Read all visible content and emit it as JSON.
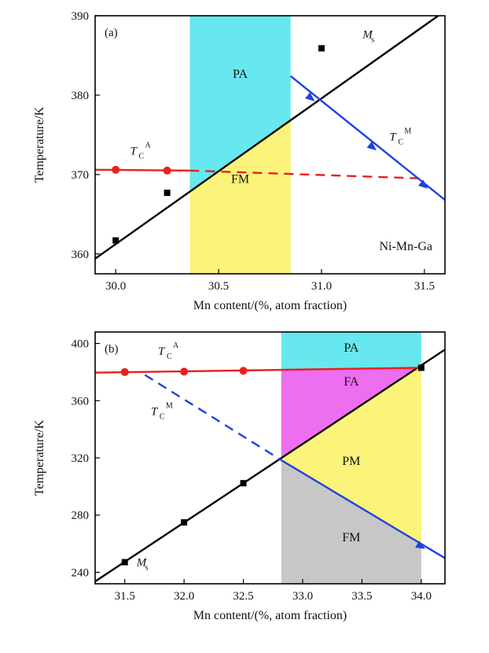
{
  "chart_data": [
    {
      "type": "line",
      "panel_label": "(a)",
      "xlabel": "Mn content/(%, atom fraction)",
      "ylabel": "Temperature/K",
      "xlim": [
        29.9,
        31.6
      ],
      "ylim": [
        357.5,
        390
      ],
      "xticks": [
        30.0,
        30.5,
        31.0,
        31.5
      ],
      "xtick_labels": [
        "30.0",
        "30.5",
        "31.0",
        "31.5"
      ],
      "yticks": [
        360,
        370,
        380,
        390
      ],
      "ytick_labels": [
        "360",
        "370",
        "380",
        "390"
      ],
      "annotation": "Ni-Mn-Ga",
      "regions": [
        {
          "label": "PA",
          "color": "#66e8ee",
          "shape": "above-Ms",
          "x": [
            30.36,
            30.85
          ]
        },
        {
          "label": "FM",
          "color": "#fbf37a",
          "shape": "below-Ms",
          "x": [
            30.36,
            30.85
          ]
        }
      ],
      "series": [
        {
          "name": "Ms",
          "name_main": "M",
          "name_sub": "s",
          "color": "#000000",
          "marker": "square",
          "style": "solid",
          "line": [
            [
              29.9,
              359.4
            ],
            [
              31.6,
              390.6
            ]
          ],
          "points": [
            [
              30.0,
              361.7
            ],
            [
              30.25,
              367.7
            ],
            [
              31.0,
              385.9
            ]
          ],
          "label_pos": [
            31.2,
            387.2
          ]
        },
        {
          "name": "TCA",
          "name_main": "T",
          "name_sub": "C",
          "name_sup": "A",
          "color": "#e82020",
          "marker": "circle",
          "style": "solid",
          "line": [
            [
              29.9,
              370.6
            ],
            [
              30.36,
              370.5
            ]
          ],
          "points": [
            [
              30.0,
              370.6
            ],
            [
              30.25,
              370.5
            ]
          ],
          "label_pos": [
            30.07,
            372.5
          ]
        },
        {
          "name": "TCA-extrapolated",
          "color": "#e82020",
          "style": "dashed",
          "line": [
            [
              30.36,
              370.5
            ],
            [
              31.5,
              369.5
            ]
          ]
        },
        {
          "name": "TCM",
          "name_main": "T",
          "name_sub": "C",
          "name_sup": "M",
          "color": "#1e40e6",
          "marker": "arrow",
          "style": "solid",
          "line": [
            [
              30.85,
              382.4
            ],
            [
              31.6,
              366.8
            ]
          ],
          "points": [
            [
              30.95,
              379.6
            ],
            [
              31.25,
              373.4
            ],
            [
              31.5,
              368.6
            ]
          ],
          "label_pos": [
            31.33,
            374.3
          ]
        }
      ]
    },
    {
      "type": "line",
      "panel_label": "(b)",
      "xlabel": "Mn content/(%, atom fraction)",
      "ylabel": "Temperature/K",
      "xlim": [
        31.25,
        34.2
      ],
      "ylim": [
        232,
        408
      ],
      "xticks": [
        31.5,
        32.0,
        32.5,
        33.0,
        33.5,
        34.0
      ],
      "xtick_labels": [
        "31.5",
        "32.0",
        "32.5",
        "33.0",
        "33.5",
        "34.0"
      ],
      "yticks": [
        240,
        280,
        320,
        360,
        400
      ],
      "ytick_labels": [
        "240",
        "280",
        "320",
        "360",
        "400"
      ],
      "regions": [
        {
          "label": "PA",
          "color": "#66e8ee",
          "shape": "above-TCA",
          "x": [
            32.82,
            34.0
          ]
        },
        {
          "label": "FA",
          "color": "#ee6ef0",
          "shape": "TCA-to-Ms",
          "x": [
            32.82,
            34.0
          ]
        },
        {
          "label": "PM",
          "color": "#fbf37a",
          "shape": "Ms-to-TCM",
          "x": [
            32.82,
            34.0
          ]
        },
        {
          "label": "FM",
          "color": "#c7c7c7",
          "shape": "below-TCM",
          "x": [
            32.82,
            34.0
          ]
        }
      ],
      "series": [
        {
          "name": "Ms",
          "name_main": "M",
          "name_sub": "s",
          "color": "#000000",
          "marker": "square",
          "style": "solid",
          "line": [
            [
              31.25,
              233.6
            ],
            [
              34.2,
              395.7
            ]
          ],
          "points": [
            [
              31.5,
              247.1
            ],
            [
              32.0,
              274.9
            ],
            [
              32.5,
              302.3
            ],
            [
              34.0,
              383.0
            ]
          ],
          "label_pos": [
            31.6,
            244.5
          ]
        },
        {
          "name": "TCA",
          "name_main": "T",
          "name_sub": "C",
          "name_sup": "A",
          "color": "#e82020",
          "marker": "circle",
          "style": "solid",
          "line": [
            [
              31.25,
              379.6
            ],
            [
              34.0,
              383.0
            ]
          ],
          "points": [
            [
              31.5,
              380.0
            ],
            [
              32.0,
              380.3
            ],
            [
              32.5,
              380.9
            ]
          ],
          "label_pos": [
            31.78,
            392.0
          ]
        },
        {
          "name": "TCM",
          "name_main": "T",
          "name_sub": "C",
          "name_sup": "M",
          "color": "#1e40e6",
          "marker": "arrow",
          "style": "solid",
          "line": [
            [
              32.82,
              318.4
            ],
            [
              34.2,
              249.9
            ]
          ],
          "points": [
            [
              34.0,
              258.0
            ]
          ],
          "label_pos": [
            31.72,
            350.0
          ]
        },
        {
          "name": "TCM-extrapolated",
          "color": "#1e40e6",
          "style": "dashed",
          "line": [
            [
              31.67,
              378.0
            ],
            [
              32.82,
              318.4
            ]
          ]
        }
      ]
    }
  ]
}
